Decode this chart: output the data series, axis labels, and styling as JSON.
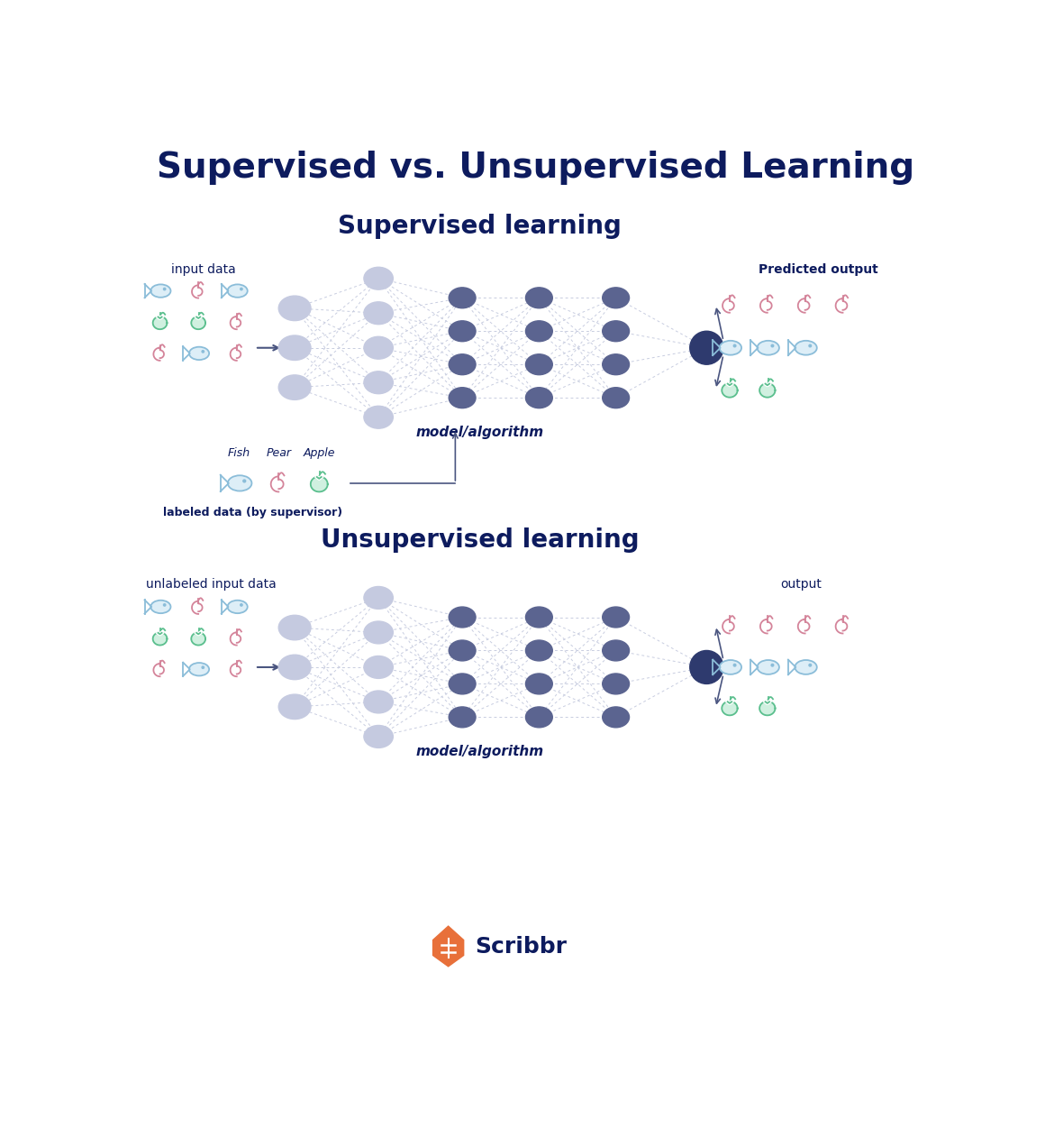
{
  "title": "Supervised vs. Unsupervised Learning",
  "title_color": "#0d1b5e",
  "title_fontsize": 28,
  "supervised_title": "Supervised learning",
  "unsupervised_title": "Unsupervised learning",
  "section_title_fontsize": 20,
  "section_title_color": "#0d1b5e",
  "bg_color": "#ffffff",
  "node_color_input": "#c5cae0",
  "node_color_h1": "#c5cae0",
  "node_color_hidden": "#5b6490",
  "node_color_output": "#2e3a6e",
  "arrow_color": "#4a5580",
  "dashed_color": "#c8cde0",
  "label_color": "#0d1b5e",
  "label_fontsize": 10,
  "small_label_fontsize": 9,
  "model_label": "model/algorithm",
  "input_label_sup": "input data",
  "input_label_unsup": "unlabeled input data",
  "output_label_sup": "Predicted output",
  "output_label_unsup": "output",
  "labeled_data_label": "labeled data (by supervisor)",
  "fish_color_blue": "#8bbdd9",
  "fish_fill_blue": "#ddeef7",
  "fish_color_pink": "#d4849a",
  "pear_color_pink": "#d4849a",
  "apple_color_green": "#5bbf8e",
  "apple_fill_green": "#d0f0e0",
  "scribbr_orange": "#e8703a",
  "scribbr_blue": "#0d1b5e",
  "scribbr_fontsize": 18
}
